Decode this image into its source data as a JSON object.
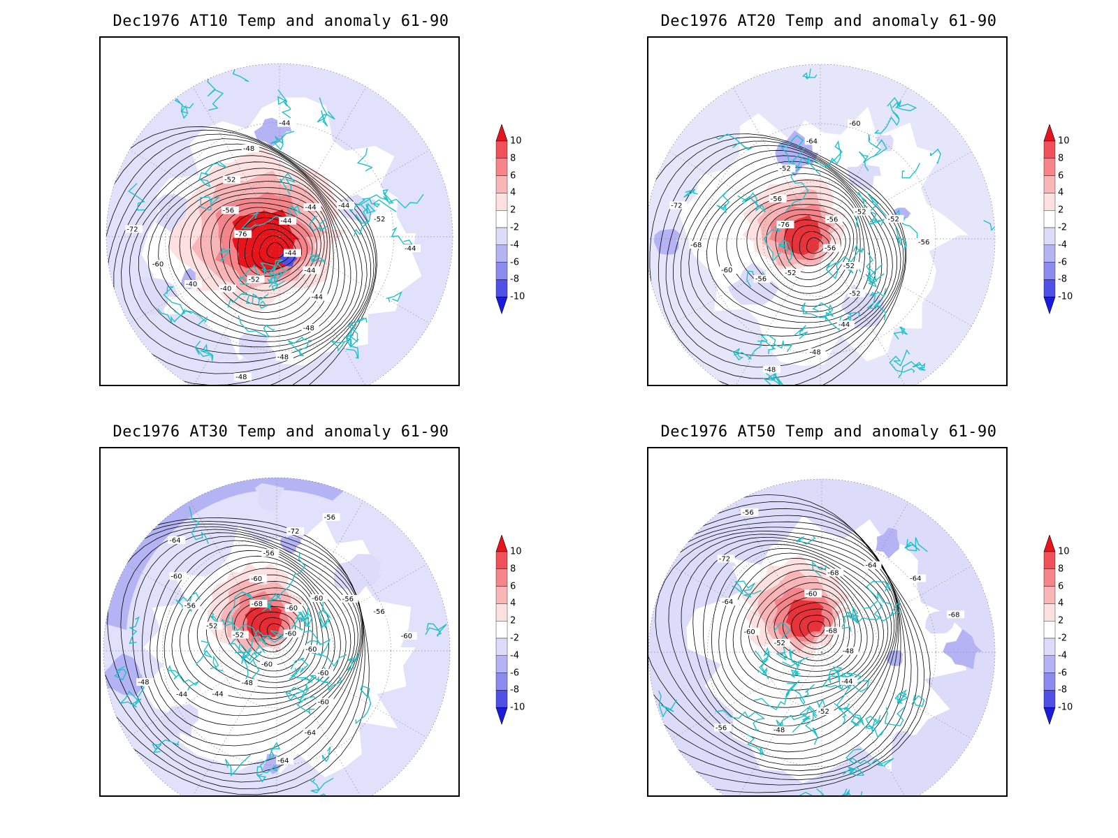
{
  "panels": [
    {
      "title": "Dec1976 AT10 Temp and anomaly 61-90",
      "contour_labels": [
        "-44",
        "-44",
        "-44",
        "-48",
        "-48",
        "-48",
        "-52",
        "-40",
        "-40",
        "-60",
        "-72",
        "-76",
        "-56",
        "-52",
        "-48",
        "-44",
        "-44",
        "-44",
        "-44",
        "-52",
        "-44"
      ]
    },
    {
      "title": "Dec1976 AT20 Temp and anomaly 61-90",
      "contour_labels": [
        "-56",
        "-52",
        "-52",
        "-44",
        "-48",
        "-48",
        "-52",
        "-56",
        "-60",
        "-68",
        "-72",
        "-76",
        "-56",
        "-52",
        "-64",
        "-60",
        "-56",
        "-52",
        "-52",
        "-56"
      ]
    },
    {
      "title": "Dec1976 AT30 Temp and anomaly 61-90",
      "contour_labels": [
        "-60",
        "-60",
        "-60",
        "-60",
        "-64",
        "-64",
        "-60",
        "-48",
        "-44",
        "-44",
        "-48",
        "-52",
        "-52",
        "-56",
        "-60",
        "-64",
        "-68",
        "-60",
        "-56",
        "-72",
        "-56",
        "-60",
        "-60",
        "-56",
        "-56",
        "-60"
      ]
    },
    {
      "title": "Dec1976 AT50 Temp and anomaly 61-90",
      "contour_labels": [
        "-68",
        "-48",
        "-44",
        "-52",
        "-48",
        "-56",
        "-52",
        "-60",
        "-64",
        "-72",
        "-56",
        "-60",
        "-68",
        "-64",
        "-64",
        "-68"
      ]
    }
  ],
  "colorbar": {
    "labels": [
      "10",
      "8",
      "6",
      "4",
      "2",
      "-2",
      "-4",
      "-6",
      "-8",
      "-10"
    ],
    "colors": [
      "#e8141c",
      "#f0505a",
      "#f5858a",
      "#f9b6b8",
      "#fde0e0",
      "#ffffff",
      "#dcdcfa",
      "#b4b4f5",
      "#8c8cee",
      "#5050e6",
      "#1a1ae0"
    ]
  }
}
